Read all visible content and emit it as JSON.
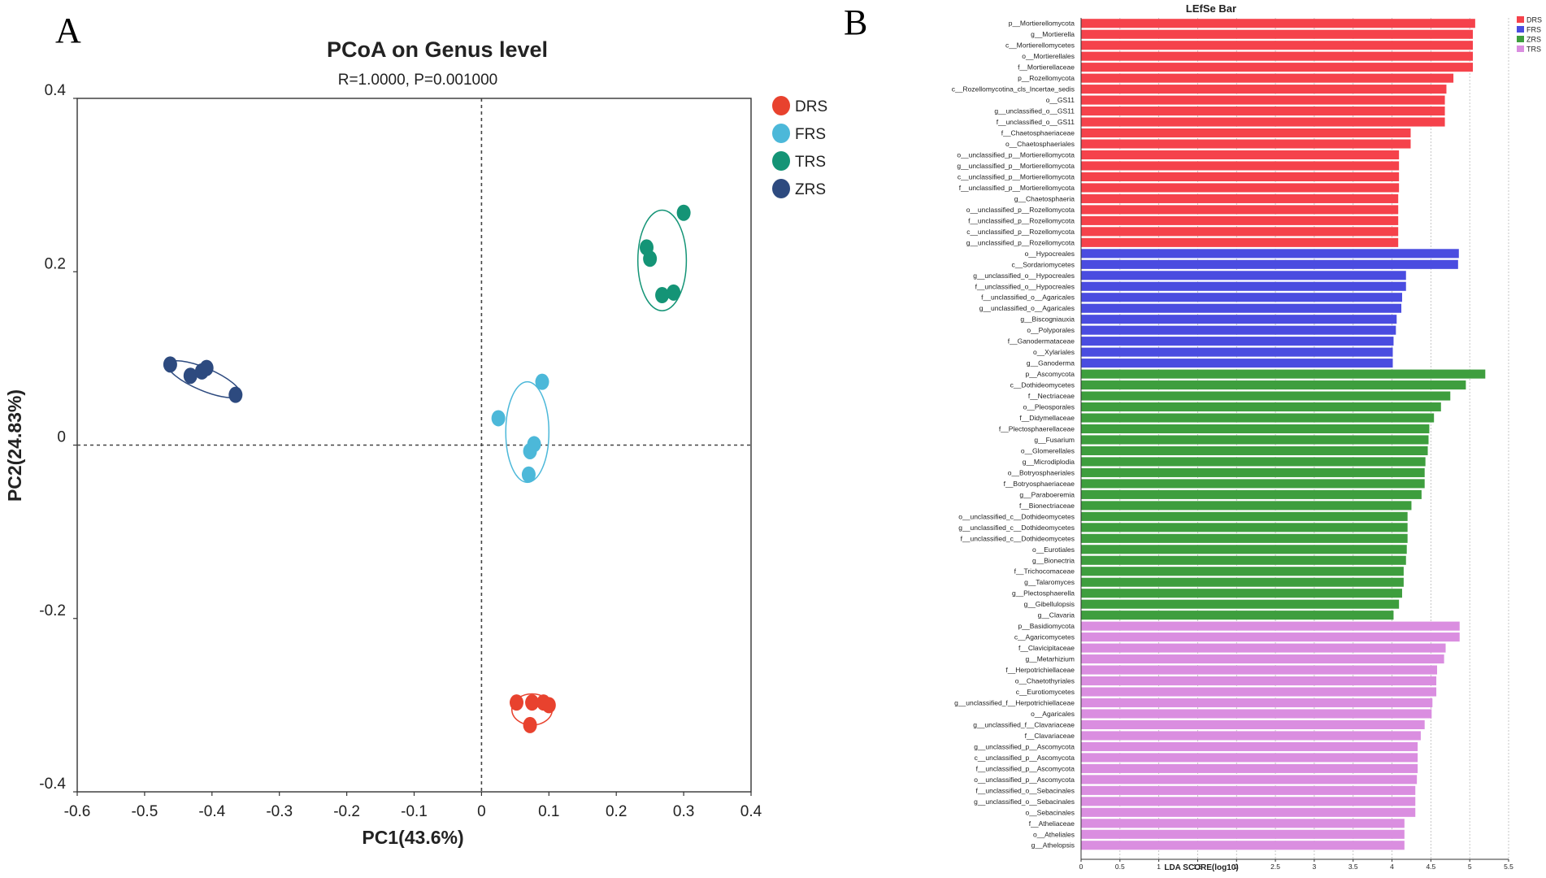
{
  "panels": {
    "left_label": "A",
    "right_label": "B"
  },
  "chart_data": [
    {
      "type": "scatter",
      "title": "PCoA on Genus level",
      "subtitle": "R=1.0000, P=0.001000",
      "xlabel": "PC1(43.6%)",
      "ylabel": "PC2(24.83%)",
      "xlim": [
        -0.6,
        0.4
      ],
      "ylim": [
        -0.4,
        0.4
      ],
      "xticks": [
        -0.6,
        -0.5,
        -0.4,
        -0.3,
        -0.2,
        -0.1,
        0,
        0.1,
        0.2,
        0.3,
        0.4
      ],
      "xtick_labels": [
        "-0.6",
        "-0.5",
        "-0.4",
        "-0.3",
        "-0.2",
        "-0.1",
        "0",
        "0.1",
        "0.2",
        "0.3",
        "0.4"
      ],
      "yticks": [
        0.4,
        0.2,
        0,
        -0.2,
        -0.4
      ],
      "ytick_labels": [
        "0.4",
        "0.2",
        "0",
        "-0.2",
        "-0.4"
      ],
      "reference_lines": {
        "x": 0,
        "y": 0
      },
      "series": [
        {
          "name": "DRS",
          "color": "#E8422E",
          "x": [
            0.052,
            0.075,
            0.092,
            0.1,
            0.072
          ],
          "y": [
            -0.297,
            -0.297,
            -0.297,
            -0.3,
            -0.323
          ],
          "ellipse": {
            "cx": 0.075,
            "cy": -0.305,
            "rx": 0.03,
            "ry": 0.018,
            "angle": 0
          }
        },
        {
          "name": "FRS",
          "color": "#4CB8D9",
          "x": [
            0.09,
            0.025,
            0.078,
            0.072,
            0.07
          ],
          "y": [
            0.073,
            0.031,
            0.001,
            -0.007,
            -0.034
          ],
          "ellipse": {
            "cx": 0.068,
            "cy": 0.015,
            "rx": 0.032,
            "ry": 0.058,
            "angle": 0
          }
        },
        {
          "name": "TRS",
          "color": "#149476",
          "x": [
            0.3,
            0.245,
            0.25,
            0.268,
            0.285
          ],
          "y": [
            0.268,
            0.228,
            0.215,
            0.173,
            0.176
          ],
          "ellipse": {
            "cx": 0.268,
            "cy": 0.213,
            "rx": 0.036,
            "ry": 0.058,
            "angle": 0
          }
        },
        {
          "name": "ZRS",
          "color": "#2D4A7F",
          "x": [
            -0.462,
            -0.432,
            -0.415,
            -0.408,
            -0.365
          ],
          "y": [
            0.093,
            0.08,
            0.085,
            0.089,
            0.058
          ],
          "ellipse": {
            "cx": -0.412,
            "cy": 0.076,
            "rx": 0.058,
            "ry": 0.013,
            "angle": 23
          }
        }
      ],
      "legend": {
        "placement": "right"
      }
    },
    {
      "type": "bar",
      "orientation": "horizontal",
      "title": "LEfSe Bar",
      "xlabel": "LDA SCORE(log10)",
      "xlim": [
        0,
        5.5
      ],
      "xticks": [
        0,
        0.5,
        1,
        1.5,
        2,
        2.5,
        3,
        3.5,
        4,
        4.5,
        5,
        5.5
      ],
      "xtick_labels": [
        "0",
        "0.5",
        "1",
        "1.5",
        "2",
        "2.5",
        "3",
        "3.5",
        "4",
        "4.5",
        "5",
        "5.5"
      ],
      "legend": [
        {
          "name": "DRS",
          "color": "#F5424B"
        },
        {
          "name": "FRS",
          "color": "#4A4CE0"
        },
        {
          "name": "ZRS",
          "color": "#3E9E3E"
        },
        {
          "name": "TRS",
          "color": "#DA8EE0"
        }
      ],
      "groups": [
        {
          "name": "DRS",
          "color": "#F5424B",
          "categories": [
            "p__Mortierellomycota",
            "g__Mortierella",
            "c__Mortierellomycetes",
            "o__Mortierellales",
            "f__Mortierellaceae",
            "p__Rozellomycota",
            "c__Rozellomycotina_cls_Incertae_sedis",
            "o__GS11",
            "g__unclassified_o__GS11",
            "f__unclassified_o__GS11",
            "f__Chaetosphaeriaceae",
            "o__Chaetosphaeriales",
            "o__unclassified_p__Mortierellomycota",
            "g__unclassified_p__Mortierellomycota",
            "c__unclassified_p__Mortierellomycota",
            "f__unclassified_p__Mortierellomycota",
            "g__Chaetosphaeria",
            "o__unclassified_p__Rozellomycota",
            "f__unclassified_p__Rozellomycota",
            "c__unclassified_p__Rozellomycota",
            "g__unclassified_p__Rozellomycota"
          ],
          "values": [
            5.07,
            5.04,
            5.04,
            5.04,
            5.04,
            4.79,
            4.7,
            4.68,
            4.68,
            4.68,
            4.24,
            4.24,
            4.09,
            4.09,
            4.09,
            4.09,
            4.08,
            4.08,
            4.08,
            4.08,
            4.08
          ]
        },
        {
          "name": "FRS",
          "color": "#4A4CE0",
          "categories": [
            "o__Hypocreales",
            "c__Sordariomycetes",
            "g__unclassified_o__Hypocreales",
            "f__unclassified_o__Hypocreales",
            "f__unclassified_o__Agaricales",
            "g__unclassified_o__Agaricales",
            "g__Biscogniauxia",
            "o__Polyporales",
            "f__Ganodermataceae",
            "o__Xylariales",
            "g__Ganoderma"
          ],
          "values": [
            4.86,
            4.85,
            4.18,
            4.18,
            4.13,
            4.12,
            4.06,
            4.05,
            4.02,
            4.01,
            4.01
          ]
        },
        {
          "name": "ZRS",
          "color": "#3E9E3E",
          "categories": [
            "p__Ascomycota",
            "c__Dothideomycetes",
            "f__Nectriaceae",
            "o__Pleosporales",
            "f__Didymellaceae",
            "f__Plectosphaerellaceae",
            "g__Fusarium",
            "o__Glomerellales",
            "g__Microdiplodia",
            "o__Botryosphaeriales",
            "f__Botryosphaeriaceae",
            "g__Paraboeremia",
            "f__Bionectriaceae",
            "o__unclassified_c__Dothideomycetes",
            "g__unclassified_c__Dothideomycetes",
            "f__unclassified_c__Dothideomycetes",
            "o__Eurotiales",
            "g__Bionectria",
            "f__Trichocomaceae",
            "g__Talaromyces",
            "g__Plectosphaerella",
            "g__Gibellulopsis",
            "g__Clavaria"
          ],
          "values": [
            5.2,
            4.95,
            4.75,
            4.63,
            4.54,
            4.48,
            4.47,
            4.46,
            4.43,
            4.42,
            4.42,
            4.38,
            4.25,
            4.2,
            4.2,
            4.2,
            4.19,
            4.18,
            4.15,
            4.15,
            4.13,
            4.09,
            4.02
          ]
        },
        {
          "name": "TRS",
          "color": "#DA8EE0",
          "categories": [
            "p__Basidiomycota",
            "c__Agaricomycetes",
            "f__Clavicipitaceae",
            "g__Metarhizium",
            "f__Herpotrichiellaceae",
            "o__Chaetothyriales",
            "c__Eurotiomycetes",
            "g__unclassified_f__Herpotrichiellaceae",
            "o__Agaricales",
            "g__unclassified_f__Clavariaceae",
            "f__Clavariaceae",
            "g__unclassified_p__Ascomycota",
            "c__unclassified_p__Ascomycota",
            "f__unclassified_p__Ascomycota",
            "o__unclassified_p__Ascomycota",
            "f__unclassified_o__Sebacinales",
            "g__unclassified_o__Sebacinales",
            "o__Sebacinales",
            "f__Atheliaceae",
            "o__Atheliales",
            "g__Athelopsis"
          ],
          "values": [
            4.87,
            4.87,
            4.69,
            4.67,
            4.58,
            4.57,
            4.57,
            4.52,
            4.51,
            4.42,
            4.37,
            4.33,
            4.33,
            4.33,
            4.32,
            4.3,
            4.3,
            4.3,
            4.16,
            4.16,
            4.16
          ]
        }
      ]
    }
  ]
}
